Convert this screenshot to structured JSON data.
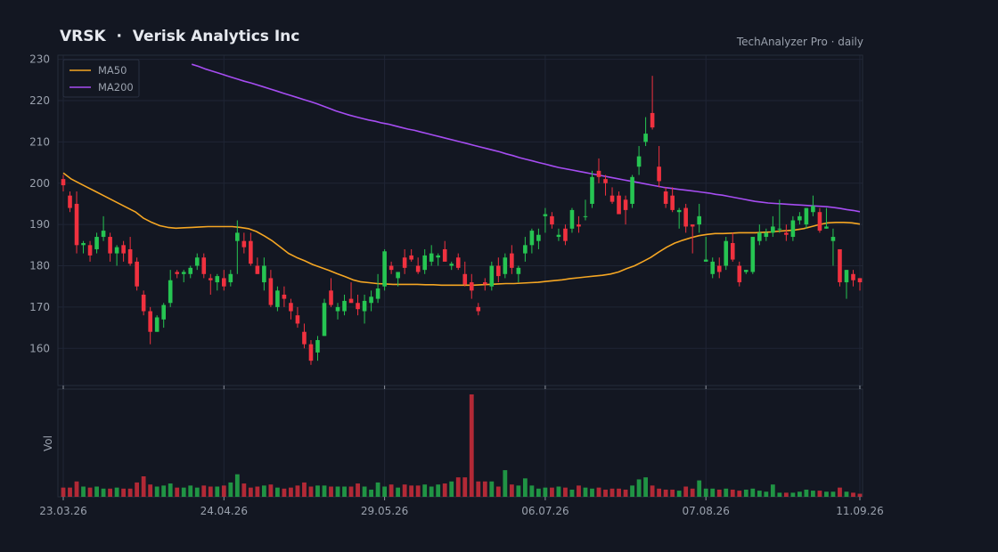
{
  "header": {
    "title": "VRSK  ·  Verisk Analytics Inc",
    "subtitle": "TechAnalyzer Pro · daily"
  },
  "colors": {
    "background": "#131722",
    "grid": "#1f2535",
    "up": "#26c552",
    "down": "#f0313f",
    "ma50": "#f5a623",
    "ma200": "#a64df2",
    "text": "#9aa1ad"
  },
  "chart_data": {
    "type": "candlestick",
    "ylim": [
      151,
      231
    ],
    "y_ticks": [
      160,
      170,
      180,
      190,
      200,
      210,
      220,
      230
    ],
    "x_ticks": [
      "23.03.26",
      "24.04.26",
      "29.05.26",
      "06.07.26",
      "07.08.26",
      "11.09.26"
    ],
    "volume_label": "Vol",
    "legend": [
      "MA50",
      "MA200"
    ],
    "legend_position": "top-left",
    "grid": true,
    "ohlc": [
      [
        201,
        202,
        198,
        199.5
      ],
      [
        197,
        198,
        193,
        194
      ],
      [
        195,
        198,
        183,
        185
      ],
      [
        185,
        186,
        183,
        185.5
      ],
      [
        185,
        186,
        181,
        182.5
      ],
      [
        184,
        188,
        183,
        187
      ],
      [
        187,
        192,
        186,
        188.5
      ],
      [
        187,
        188,
        181,
        183
      ],
      [
        183,
        185,
        180,
        184.5
      ],
      [
        185,
        186,
        181,
        183
      ],
      [
        184,
        187,
        180,
        180.5
      ],
      [
        181,
        182,
        174,
        175
      ],
      [
        173,
        174,
        168,
        169
      ],
      [
        169,
        170,
        161,
        164
      ],
      [
        164,
        168,
        164,
        167.5
      ],
      [
        167,
        171,
        165,
        170.5
      ],
      [
        171,
        179,
        170,
        176.5
      ],
      [
        178.5,
        179,
        177,
        178
      ],
      [
        178,
        179,
        176,
        178.5
      ],
      [
        178,
        180,
        177,
        179.5
      ],
      [
        180,
        183,
        179,
        182
      ],
      [
        182,
        183,
        177,
        178
      ],
      [
        177,
        178,
        173,
        176.5
      ],
      [
        176,
        178,
        174,
        177.5
      ],
      [
        177,
        179,
        174,
        175
      ],
      [
        176,
        179,
        175,
        178
      ],
      [
        186,
        191,
        178,
        188
      ],
      [
        186,
        188,
        183,
        184.5
      ],
      [
        186,
        188,
        180,
        180.5
      ],
      [
        180,
        182,
        178,
        178
      ],
      [
        176,
        182,
        174,
        180
      ],
      [
        177,
        179,
        170,
        170.5
      ],
      [
        170,
        175,
        169,
        174
      ],
      [
        173,
        175,
        170,
        172
      ],
      [
        171,
        172,
        167,
        169
      ],
      [
        168,
        170,
        165,
        166
      ],
      [
        164,
        166,
        160,
        161
      ],
      [
        161,
        162,
        156,
        157
      ],
      [
        159,
        163,
        157,
        162
      ],
      [
        163,
        172,
        163,
        171
      ],
      [
        174,
        177,
        170,
        170.5
      ],
      [
        169,
        171,
        167,
        170
      ],
      [
        169,
        173,
        168,
        171.5
      ],
      [
        172,
        176,
        171,
        171
      ],
      [
        171,
        173,
        168,
        169.5
      ],
      [
        169,
        173,
        166,
        171.5
      ],
      [
        171,
        174,
        169,
        172.5
      ],
      [
        172,
        178,
        171,
        174.5
      ],
      [
        175,
        184,
        174,
        183.5
      ],
      [
        180,
        181,
        178,
        179
      ],
      [
        177,
        178,
        175,
        178.5
      ],
      [
        182,
        184,
        178,
        179.5
      ],
      [
        182.5,
        184,
        181,
        181.5
      ],
      [
        180,
        182,
        178,
        178.5
      ],
      [
        179,
        184,
        178,
        182.5
      ],
      [
        181,
        185,
        180,
        183
      ],
      [
        182,
        183,
        180,
        182.5
      ],
      [
        184,
        186,
        181,
        181
      ],
      [
        180,
        181,
        179,
        180.5
      ],
      [
        182,
        183,
        179,
        179.5
      ],
      [
        178,
        181,
        175,
        175.5
      ],
      [
        176,
        178,
        172,
        174
      ],
      [
        170,
        171,
        168,
        169
      ],
      [
        176,
        177,
        174,
        175.5
      ],
      [
        175,
        181,
        174,
        180
      ],
      [
        180,
        182,
        176,
        177.5
      ],
      [
        178,
        183,
        177,
        182
      ],
      [
        183,
        185,
        178,
        179.5
      ],
      [
        178,
        180,
        176,
        179.5
      ],
      [
        183,
        187,
        181,
        185
      ],
      [
        185,
        189,
        183,
        188.5
      ],
      [
        186,
        189,
        184,
        187.5
      ],
      [
        192,
        194,
        188,
        192.5
      ],
      [
        192,
        193,
        189,
        190
      ],
      [
        187,
        189,
        186,
        187.5
      ],
      [
        189,
        190,
        185,
        186
      ],
      [
        189,
        194,
        188,
        193.5
      ],
      [
        190,
        192,
        188,
        189.5
      ],
      [
        192,
        196,
        191,
        192
      ],
      [
        195,
        203,
        194,
        201.5
      ],
      [
        203,
        206,
        200,
        201.5
      ],
      [
        201,
        202,
        197,
        200
      ],
      [
        197,
        199,
        195,
        195.5
      ],
      [
        197,
        198,
        193,
        192.5
      ],
      [
        196,
        197,
        190,
        193.5
      ],
      [
        195,
        202,
        194,
        201.5
      ],
      [
        204,
        209,
        202,
        206.5
      ],
      [
        210,
        216,
        209,
        212
      ],
      [
        217,
        226,
        213,
        213.5
      ],
      [
        204,
        209,
        199,
        200.5
      ],
      [
        198,
        199,
        194,
        195
      ],
      [
        197,
        199,
        193,
        193.5
      ],
      [
        193,
        194,
        189,
        193.5
      ],
      [
        194,
        195,
        188,
        189.5
      ],
      [
        190,
        190,
        183,
        189.5
      ],
      [
        190,
        195,
        188,
        192
      ],
      [
        181,
        187,
        181,
        181.5
      ],
      [
        178,
        182,
        177,
        181
      ],
      [
        180,
        182,
        177,
        178.5
      ],
      [
        180,
        187,
        179,
        186
      ],
      [
        185.5,
        188,
        181,
        181.5
      ],
      [
        180,
        181,
        175,
        176
      ],
      [
        178.5,
        179,
        178,
        179
      ],
      [
        178.5,
        187,
        178,
        187
      ],
      [
        186,
        190,
        185,
        188
      ],
      [
        187,
        189,
        186,
        188
      ],
      [
        188,
        192,
        187,
        189.5
      ],
      [
        189,
        196,
        188,
        189
      ],
      [
        188,
        190,
        186,
        187.5
      ],
      [
        187,
        192,
        186,
        191
      ],
      [
        191,
        193,
        190,
        192
      ],
      [
        190,
        194,
        189,
        194
      ],
      [
        193,
        197,
        192,
        194.5
      ],
      [
        193,
        194,
        188,
        188.5
      ],
      [
        189,
        194,
        189,
        189.5
      ],
      [
        186,
        189,
        180,
        187
      ],
      [
        184,
        184,
        175,
        176
      ],
      [
        176,
        179,
        172,
        179
      ],
      [
        178,
        179,
        175,
        176.5
      ],
      [
        177,
        177,
        174,
        176
      ]
    ],
    "volume": [
      0.09,
      0.09,
      0.15,
      0.1,
      0.09,
      0.1,
      0.08,
      0.08,
      0.09,
      0.08,
      0.08,
      0.14,
      0.2,
      0.12,
      0.1,
      0.11,
      0.13,
      0.09,
      0.09,
      0.11,
      0.09,
      0.11,
      0.1,
      0.1,
      0.11,
      0.14,
      0.22,
      0.13,
      0.09,
      0.1,
      0.11,
      0.12,
      0.09,
      0.08,
      0.09,
      0.11,
      0.14,
      0.1,
      0.11,
      0.11,
      0.1,
      0.1,
      0.1,
      0.1,
      0.13,
      0.1,
      0.07,
      0.14,
      0.1,
      0.12,
      0.09,
      0.12,
      0.11,
      0.11,
      0.12,
      0.1,
      0.12,
      0.13,
      0.15,
      0.19,
      0.19,
      1.0,
      0.15,
      0.15,
      0.15,
      0.1,
      0.26,
      0.12,
      0.11,
      0.18,
      0.11,
      0.08,
      0.09,
      0.09,
      0.1,
      0.09,
      0.07,
      0.11,
      0.09,
      0.08,
      0.09,
      0.07,
      0.08,
      0.08,
      0.07,
      0.11,
      0.17,
      0.19,
      0.11,
      0.08,
      0.07,
      0.07,
      0.06,
      0.1,
      0.08,
      0.16,
      0.08,
      0.08,
      0.07,
      0.08,
      0.07,
      0.06,
      0.07,
      0.08,
      0.06,
      0.05,
      0.12,
      0.04,
      0.04,
      0.04,
      0.05,
      0.07,
      0.06,
      0.06,
      0.05,
      0.05,
      0.09,
      0.05,
      0.04,
      0.03
    ],
    "ma50": [
      202.5,
      201,
      200,
      199,
      198,
      197,
      196,
      195,
      194,
      193,
      191.5,
      190.5,
      189.7,
      189.3,
      189.1,
      189.2,
      189.3,
      189.4,
      189.5,
      189.5,
      189.5,
      189.5,
      189.3,
      189,
      188.3,
      187.2,
      186,
      184.5,
      183,
      182,
      181.2,
      180.3,
      179.6,
      178.9,
      178.1,
      177.4,
      176.6,
      176.1,
      175.9,
      175.7,
      175.6,
      175.5,
      175.5,
      175.5,
      175.5,
      175.4,
      175.4,
      175.3,
      175.3,
      175.3,
      175.3,
      175.3,
      175.4,
      175.5,
      175.6,
      175.7,
      175.7,
      175.8,
      175.9,
      176,
      176.2,
      176.4,
      176.6,
      176.9,
      177.1,
      177.3,
      177.5,
      177.7,
      178,
      178.5,
      179.3,
      180,
      181,
      182,
      183.3,
      184.5,
      185.5,
      186.2,
      186.8,
      187.3,
      187.6,
      187.8,
      187.8,
      187.9,
      188,
      188,
      188,
      188.1,
      188.2,
      188.4,
      188.5,
      188.7,
      189,
      189.5,
      190,
      190.4,
      190.5,
      190.5,
      190.4,
      190.1
    ],
    "ma200": [
      228.8,
      228.3,
      227.7,
      227.2,
      226.7,
      226.2,
      225.7,
      225.2,
      224.7,
      224.3,
      223.8,
      223.3,
      222.8,
      222.3,
      221.8,
      221.3,
      220.8,
      220.3,
      219.8,
      219.3,
      218.7,
      218.1,
      217.5,
      217,
      216.5,
      216.1,
      215.7,
      215.3,
      215,
      214.6,
      214.3,
      213.9,
      213.5,
      213.1,
      212.8,
      212.4,
      212,
      211.6,
      211.2,
      210.8,
      210.4,
      210,
      209.6,
      209.2,
      208.8,
      208.4,
      208,
      207.6,
      207.1,
      206.7,
      206.2,
      205.8,
      205.4,
      205,
      204.6,
      204.2,
      203.8,
      203.5,
      203.2,
      202.9,
      202.6,
      202.3,
      202,
      201.7,
      201.4,
      201.1,
      200.8,
      200.5,
      200.2,
      199.9,
      199.6,
      199.3,
      199,
      198.8,
      198.6,
      198.4,
      198.2,
      198,
      197.8,
      197.6,
      197.3,
      197.1,
      196.8,
      196.5,
      196.2,
      195.9,
      195.6,
      195.4,
      195.2,
      195.1,
      195,
      194.9,
      194.8,
      194.7,
      194.6,
      194.5,
      194.4,
      194.3,
      194.1,
      193.9,
      193.6,
      193.4,
      193.1
    ]
  }
}
